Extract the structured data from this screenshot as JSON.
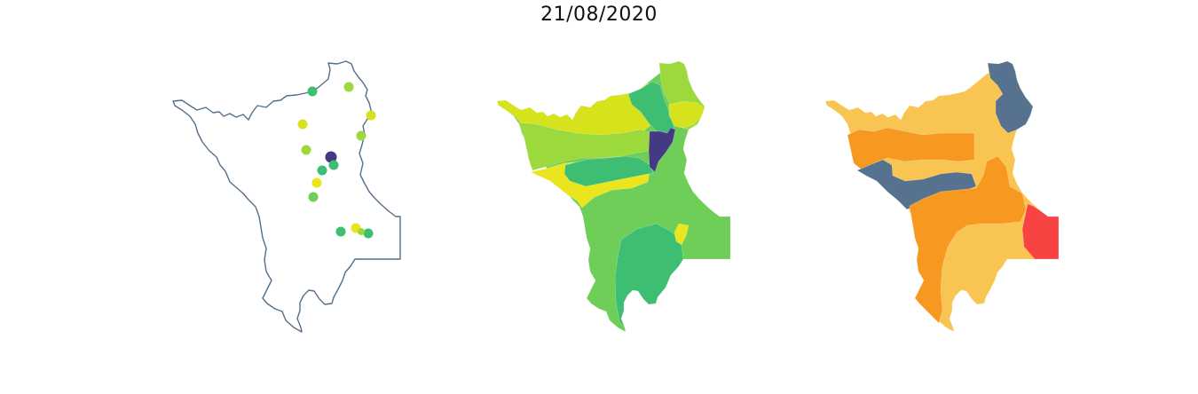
{
  "figure": {
    "title": "21/08/2020"
  },
  "colors": {
    "outline": "#536f8c",
    "viridis_purple": "#433a83",
    "viridis_teal": "#3dbe72",
    "viridis_green": "#6fce58",
    "viridis_lime": "#9bd93d",
    "viridis_yellowgreen": "#d6e21b",
    "viridis_yellow": "#ebe51e",
    "risk_slate": "#56728e",
    "risk_light_orange": "#f8c553",
    "risk_orange": "#f79920",
    "risk_red": "#f84343"
  },
  "panels": [
    {
      "kind": "outline-with-points",
      "point_count": 14
    },
    {
      "kind": "choropleth-viridis"
    },
    {
      "kind": "choropleth-risk"
    }
  ]
}
